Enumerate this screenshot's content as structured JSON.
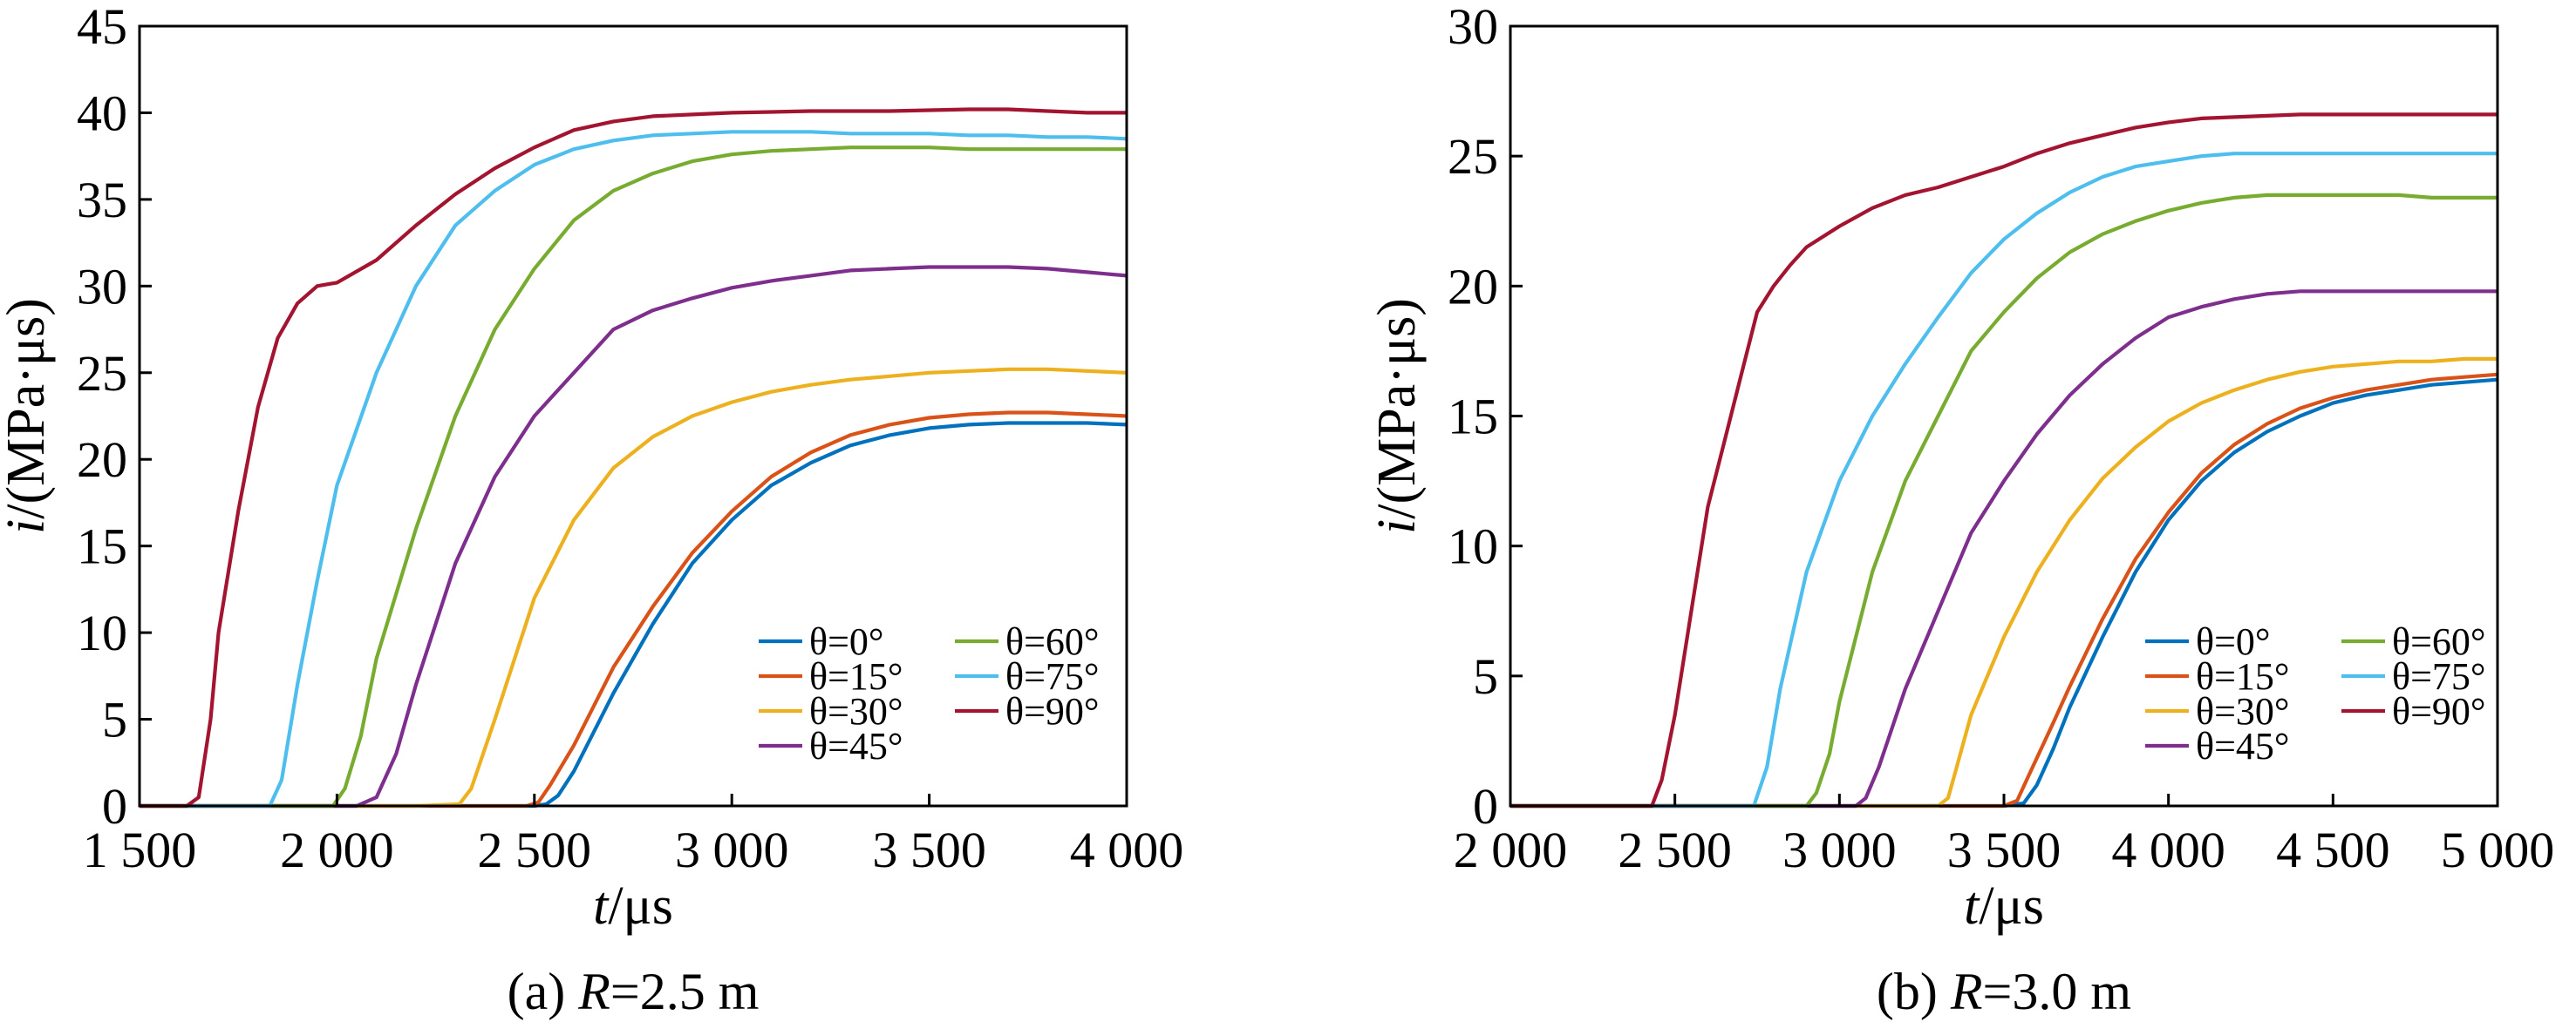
{
  "chart_data": [
    {
      "type": "line",
      "caption": {
        "prefix": "(a) ",
        "var": "R",
        "rest": "=2.5 m"
      },
      "xlabel": {
        "var": "t",
        "unit": "/μs"
      },
      "ylabel": {
        "var": "i",
        "unit": "/(MPa·μs)"
      },
      "xlim": [
        1500,
        4000
      ],
      "ylim": [
        0,
        45
      ],
      "xticks": [
        1500,
        2000,
        2500,
        3000,
        3500,
        4000
      ],
      "xtick_labels": [
        "1 500",
        "2 000",
        "2 500",
        "3 000",
        "3 500",
        "4 000"
      ],
      "yticks": [
        0,
        5,
        10,
        15,
        20,
        25,
        30,
        35,
        40,
        45
      ],
      "ytick_labels": [
        "0",
        "5",
        "10",
        "15",
        "20",
        "25",
        "30",
        "35",
        "40",
        "45"
      ],
      "legend_position": "bottom-right",
      "series": [
        {
          "name": "θ=0°",
          "color": "#0072BD",
          "x": [
            1500,
            2300,
            2500,
            2530,
            2560,
            2600,
            2700,
            2800,
            2900,
            3000,
            3100,
            3200,
            3300,
            3400,
            3500,
            3600,
            3700,
            3800,
            3900,
            4000
          ],
          "y": [
            0,
            0,
            0,
            0.1,
            0.6,
            2,
            6.5,
            10.5,
            14,
            16.5,
            18.5,
            19.8,
            20.8,
            21.4,
            21.8,
            22.0,
            22.1,
            22.1,
            22.1,
            22.0
          ]
        },
        {
          "name": "θ=15°",
          "color": "#D95319",
          "x": [
            1500,
            2300,
            2480,
            2510,
            2540,
            2600,
            2700,
            2800,
            2900,
            3000,
            3100,
            3200,
            3300,
            3400,
            3500,
            3600,
            3700,
            3800,
            3900,
            4000
          ],
          "y": [
            0,
            0,
            0,
            0.2,
            1.2,
            3.5,
            8,
            11.5,
            14.6,
            17,
            19,
            20.4,
            21.4,
            22.0,
            22.4,
            22.6,
            22.7,
            22.7,
            22.6,
            22.5
          ]
        },
        {
          "name": "θ=30°",
          "color": "#EDB120",
          "x": [
            1500,
            2200,
            2310,
            2340,
            2400,
            2500,
            2600,
            2700,
            2800,
            2900,
            3000,
            3100,
            3200,
            3300,
            3400,
            3500,
            3600,
            3700,
            3800,
            3900,
            4000
          ],
          "y": [
            0,
            0,
            0.1,
            1,
            5,
            12,
            16.5,
            19.5,
            21.3,
            22.5,
            23.3,
            23.9,
            24.3,
            24.6,
            24.8,
            25.0,
            25.1,
            25.2,
            25.2,
            25.1,
            25.0
          ]
        },
        {
          "name": "θ=45°",
          "color": "#7E2F8E",
          "x": [
            1500,
            2050,
            2100,
            2150,
            2200,
            2300,
            2400,
            2500,
            2600,
            2700,
            2800,
            2900,
            3000,
            3100,
            3200,
            3300,
            3400,
            3500,
            3600,
            3700,
            3800,
            3900,
            4000
          ],
          "y": [
            0,
            0,
            0.5,
            3,
            7,
            14,
            19,
            22.5,
            25,
            27.5,
            28.6,
            29.3,
            29.9,
            30.3,
            30.6,
            30.9,
            31.0,
            31.1,
            31.1,
            31.1,
            31.0,
            30.8,
            30.6
          ]
        },
        {
          "name": "θ=60°",
          "color": "#77AC30",
          "x": [
            1500,
            1990,
            2020,
            2060,
            2100,
            2200,
            2300,
            2400,
            2500,
            2600,
            2700,
            2800,
            2900,
            3000,
            3100,
            3200,
            3300,
            3400,
            3500,
            3600,
            3700,
            3800,
            3900,
            4000
          ],
          "y": [
            0,
            0,
            1,
            4,
            8.5,
            16,
            22.5,
            27.5,
            31,
            33.8,
            35.5,
            36.5,
            37.2,
            37.6,
            37.8,
            37.9,
            38.0,
            38.0,
            38.0,
            37.9,
            37.9,
            37.9,
            37.9,
            37.9
          ]
        },
        {
          "name": "θ=75°",
          "color": "#4DBEEE",
          "x": [
            1500,
            1830,
            1860,
            1900,
            1950,
            2000,
            2100,
            2200,
            2300,
            2400,
            2500,
            2600,
            2700,
            2800,
            2900,
            3000,
            3100,
            3200,
            3300,
            3400,
            3500,
            3600,
            3700,
            3800,
            3900,
            4000
          ],
          "y": [
            0,
            0,
            1.5,
            7,
            13,
            18.5,
            25,
            30,
            33.5,
            35.5,
            37,
            37.9,
            38.4,
            38.7,
            38.8,
            38.9,
            38.9,
            38.9,
            38.8,
            38.8,
            38.8,
            38.7,
            38.7,
            38.6,
            38.6,
            38.5
          ]
        },
        {
          "name": "θ=90°",
          "color": "#A2142F",
          "x": [
            1500,
            1620,
            1650,
            1680,
            1700,
            1750,
            1800,
            1850,
            1900,
            1950,
            2000,
            2100,
            2200,
            2300,
            2400,
            2500,
            2600,
            2700,
            2800,
            2900,
            3000,
            3100,
            3200,
            3300,
            3400,
            3500,
            3600,
            3700,
            3800,
            3900,
            4000
          ],
          "y": [
            0,
            0,
            0.5,
            5,
            10,
            17,
            23,
            27,
            29,
            30,
            30.2,
            31.5,
            33.5,
            35.3,
            36.8,
            38,
            39,
            39.5,
            39.8,
            39.9,
            40,
            40.05,
            40.1,
            40.1,
            40.1,
            40.15,
            40.2,
            40.2,
            40.1,
            40.0,
            40.0
          ]
        }
      ]
    },
    {
      "type": "line",
      "caption": {
        "prefix": "(b) ",
        "var": "R",
        "rest": "=3.0 m"
      },
      "xlabel": {
        "var": "t",
        "unit": "/μs"
      },
      "ylabel": {
        "var": "i",
        "unit": "/(MPa·μs)"
      },
      "xlim": [
        2000,
        5000
      ],
      "ylim": [
        0,
        30
      ],
      "xticks": [
        2000,
        2500,
        3000,
        3500,
        4000,
        4500,
        5000
      ],
      "xtick_labels": [
        "2 000",
        "2 500",
        "3 000",
        "3 500",
        "4 000",
        "4 500",
        "5 000"
      ],
      "yticks": [
        0,
        5,
        10,
        15,
        20,
        25,
        30
      ],
      "ytick_labels": [
        "0",
        "5",
        "10",
        "15",
        "20",
        "25",
        "30"
      ],
      "legend_position": "bottom-right",
      "series": [
        {
          "name": "θ=0°",
          "color": "#0072BD",
          "x": [
            2000,
            3500,
            3560,
            3600,
            3650,
            3700,
            3800,
            3900,
            4000,
            4100,
            4200,
            4300,
            4400,
            4500,
            4600,
            4700,
            4800,
            4900,
            5000
          ],
          "y": [
            0,
            0,
            0.1,
            0.8,
            2.2,
            3.8,
            6.5,
            9,
            11,
            12.5,
            13.6,
            14.4,
            15,
            15.5,
            15.8,
            16,
            16.2,
            16.3,
            16.4
          ]
        },
        {
          "name": "θ=15°",
          "color": "#D95319",
          "x": [
            2000,
            3500,
            3540,
            3580,
            3650,
            3700,
            3800,
            3900,
            4000,
            4100,
            4200,
            4300,
            4400,
            4500,
            4600,
            4700,
            4800,
            4900,
            5000
          ],
          "y": [
            0,
            0,
            0.2,
            1.3,
            3.2,
            4.6,
            7.2,
            9.5,
            11.3,
            12.8,
            13.9,
            14.7,
            15.3,
            15.7,
            16,
            16.2,
            16.4,
            16.5,
            16.6
          ]
        },
        {
          "name": "θ=30°",
          "color": "#EDB120",
          "x": [
            2000,
            3300,
            3330,
            3350,
            3400,
            3450,
            3500,
            3600,
            3700,
            3800,
            3900,
            4000,
            4100,
            4200,
            4300,
            4400,
            4500,
            4600,
            4700,
            4800,
            4900,
            5000
          ],
          "y": [
            0,
            0,
            0.3,
            1.2,
            3.5,
            5,
            6.5,
            9,
            11,
            12.6,
            13.8,
            14.8,
            15.5,
            16,
            16.4,
            16.7,
            16.9,
            17,
            17.1,
            17.1,
            17.2,
            17.2
          ]
        },
        {
          "name": "θ=45°",
          "color": "#7E2F8E",
          "x": [
            2000,
            3050,
            3080,
            3120,
            3200,
            3300,
            3400,
            3500,
            3600,
            3700,
            3800,
            3900,
            4000,
            4100,
            4200,
            4300,
            4400,
            4500,
            4600,
            4700,
            4800,
            4900,
            5000
          ],
          "y": [
            0,
            0,
            0.3,
            1.5,
            4.5,
            7.5,
            10.5,
            12.5,
            14.3,
            15.8,
            17,
            18,
            18.8,
            19.2,
            19.5,
            19.7,
            19.8,
            19.8,
            19.8,
            19.8,
            19.8,
            19.8,
            19.8
          ]
        },
        {
          "name": "θ=60°",
          "color": "#77AC30",
          "x": [
            2000,
            2900,
            2930,
            2970,
            3000,
            3100,
            3200,
            3300,
            3400,
            3500,
            3600,
            3700,
            3800,
            3900,
            4000,
            4100,
            4200,
            4300,
            4400,
            4500,
            4600,
            4700,
            4800,
            4900,
            5000
          ],
          "y": [
            0,
            0,
            0.5,
            2,
            4,
            9,
            12.5,
            15,
            17.5,
            19,
            20.3,
            21.3,
            22,
            22.5,
            22.9,
            23.2,
            23.4,
            23.5,
            23.5,
            23.5,
            23.5,
            23.5,
            23.4,
            23.4,
            23.4
          ]
        },
        {
          "name": "θ=75°",
          "color": "#4DBEEE",
          "x": [
            2000,
            2740,
            2780,
            2820,
            2900,
            3000,
            3100,
            3200,
            3300,
            3400,
            3500,
            3600,
            3700,
            3800,
            3900,
            4000,
            4100,
            4200,
            4300,
            4400,
            4500,
            4600,
            4700,
            4800,
            4900,
            5000
          ],
          "y": [
            0,
            0,
            1.5,
            4.5,
            9,
            12.5,
            15,
            17,
            18.8,
            20.5,
            21.8,
            22.8,
            23.6,
            24.2,
            24.6,
            24.8,
            25,
            25.1,
            25.1,
            25.1,
            25.1,
            25.1,
            25.1,
            25.1,
            25.1,
            25.1
          ]
        },
        {
          "name": "θ=90°",
          "color": "#A2142F",
          "x": [
            2000,
            2430,
            2460,
            2500,
            2550,
            2600,
            2650,
            2700,
            2750,
            2800,
            2850,
            2900,
            3000,
            3100,
            3200,
            3300,
            3400,
            3500,
            3600,
            3700,
            3800,
            3900,
            4000,
            4100,
            4200,
            4300,
            4400,
            4500,
            4600,
            4700,
            4800,
            4900,
            5000
          ],
          "y": [
            0,
            0,
            1,
            3.5,
            7.5,
            11.5,
            14,
            16.5,
            19,
            20,
            20.8,
            21.5,
            22.3,
            23,
            23.5,
            23.8,
            24.2,
            24.6,
            25.1,
            25.5,
            25.8,
            26.1,
            26.3,
            26.45,
            26.5,
            26.55,
            26.6,
            26.6,
            26.6,
            26.6,
            26.6,
            26.6,
            26.6
          ]
        }
      ]
    }
  ]
}
